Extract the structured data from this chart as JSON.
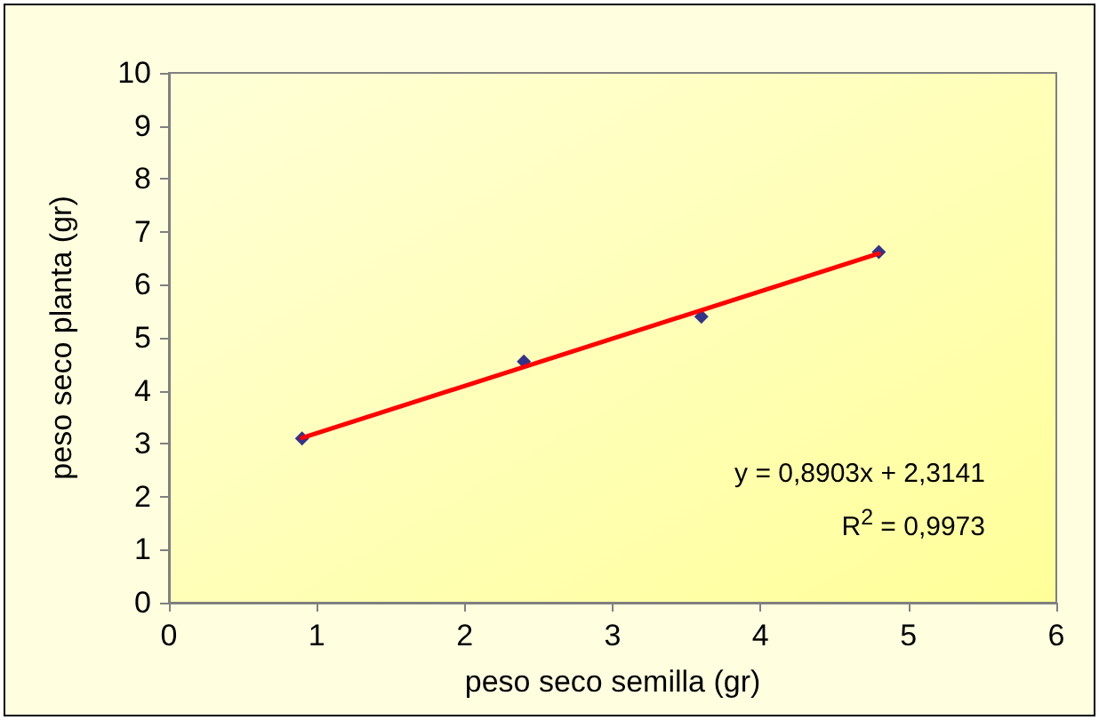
{
  "chart_data": {
    "type": "scatter",
    "xlabel": "peso seco semilla (gr)",
    "ylabel": "peso seco planta (gr)",
    "xlim": [
      0,
      6
    ],
    "xticks": [
      0,
      1,
      2,
      3,
      4,
      5,
      6
    ],
    "ylim": [
      0,
      10
    ],
    "yticks": [
      0,
      1,
      2,
      3,
      4,
      5,
      6,
      7,
      8,
      9,
      10
    ],
    "grid": false,
    "marker": "diamond",
    "series": [
      {
        "type": "scatter",
        "color": "#000080",
        "x": [
          0.9,
          2.4,
          3.6,
          4.8
        ],
        "values": [
          3.1,
          4.55,
          5.4,
          6.62
        ]
      },
      {
        "type": "line",
        "color": "#ff0000",
        "marker": "none",
        "line_style": "solid",
        "x": [
          0.9,
          4.8
        ],
        "values": [
          3.11,
          6.59
        ]
      }
    ],
    "annotations": [
      "y = 0,8903x + 2,3141",
      "R$^{2}$ = 0,9973"
    ]
  }
}
